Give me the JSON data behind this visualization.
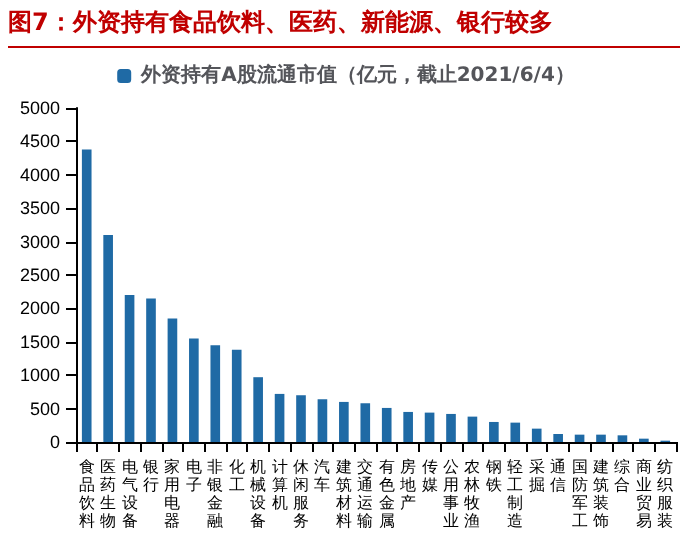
{
  "chart_data": {
    "type": "bar",
    "title": "图7：外资持有食品饮料、医药、新能源、银行较多",
    "categories": [
      "食品饮料",
      "医药生物",
      "电气设备",
      "银行",
      "家用电器",
      "电子",
      "非银金融",
      "化工",
      "机械设备",
      "计算机",
      "休闲服务",
      "汽车",
      "建筑材料",
      "交通运输",
      "有色金属",
      "房地产",
      "传媒",
      "公用事业",
      "农林牧渔",
      "钢铁",
      "轻工制造",
      "采掘",
      "通信",
      "国防军工",
      "建筑装饰",
      "综合",
      "商业贸易",
      "纺织服装"
    ],
    "series": [
      {
        "name": "外资持有A股流通市值（亿元，截止2021/6/4）",
        "color": "#1f6aa5",
        "values": [
          4380,
          3100,
          2200,
          2150,
          1850,
          1550,
          1450,
          1380,
          970,
          720,
          700,
          640,
          600,
          580,
          510,
          450,
          440,
          420,
          380,
          300,
          290,
          200,
          120,
          110,
          110,
          100,
          50,
          20
        ]
      }
    ],
    "ylim": [
      0,
      5000
    ],
    "yticks": [
      0,
      500,
      1000,
      1500,
      2000,
      2500,
      3000,
      3500,
      4000,
      4500,
      5000
    ],
    "legend": "top",
    "grid": false
  }
}
